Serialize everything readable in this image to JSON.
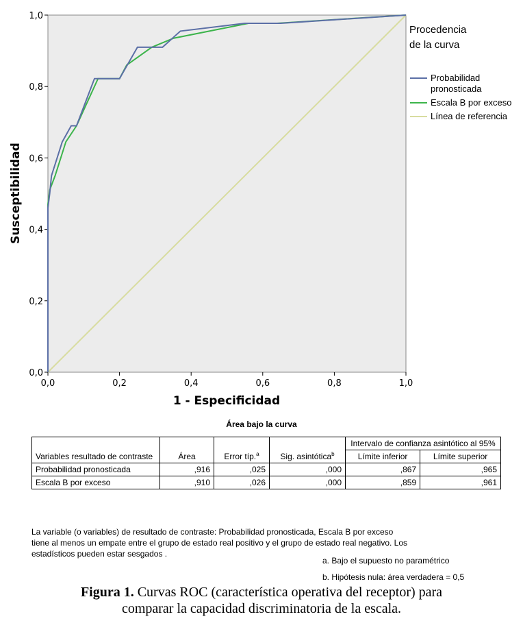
{
  "chart_data": {
    "type": "line",
    "xlabel": "1 - Especificidad",
    "ylabel": "Susceptibilidad",
    "xlim": [
      0,
      1
    ],
    "ylim": [
      0,
      1
    ],
    "xticks": [
      "0,0",
      "0,2",
      "0,4",
      "0,6",
      "0,8",
      "1,0"
    ],
    "yticks": [
      "0,0",
      "0,2",
      "0,4",
      "0,6",
      "0,8",
      "1,0"
    ],
    "legend_title": [
      "Procedencia",
      "de la curva"
    ],
    "legend_position": "right",
    "series": [
      {
        "name": "Probabilidad pronosticada",
        "legend_lines": [
          "Probabilidad",
          "pronosticada"
        ],
        "color": "#5b6fa6",
        "x": [
          0,
          0,
          0.005,
          0.01,
          0.04,
          0.065,
          0.08,
          0.13,
          0.2,
          0.25,
          0.32,
          0.37,
          0.55,
          0.65,
          1.0
        ],
        "y": [
          0,
          0.46,
          0.5,
          0.55,
          0.645,
          0.69,
          0.69,
          0.822,
          0.822,
          0.91,
          0.91,
          0.955,
          0.977,
          0.977,
          1.0
        ]
      },
      {
        "name": "Escala B por exceso",
        "legend_lines": [
          "Escala B por exceso"
        ],
        "color": "#3cb44b",
        "x": [
          0,
          0,
          0.005,
          0.02,
          0.05,
          0.08,
          0.14,
          0.2,
          0.22,
          0.29,
          0.35,
          0.56,
          0.64,
          1.0
        ],
        "y": [
          0,
          0.47,
          0.51,
          0.55,
          0.645,
          0.69,
          0.822,
          0.822,
          0.86,
          0.91,
          0.935,
          0.977,
          0.977,
          1.0
        ]
      },
      {
        "name": "Línea de referencia",
        "legend_lines": [
          "Línea de referencia"
        ],
        "color": "#d8dca0",
        "x": [
          0,
          1
        ],
        "y": [
          0,
          1
        ]
      }
    ],
    "background": "#ececec"
  },
  "table": {
    "title": "Área bajo la curva",
    "col_variable": "Variables resultado de contraste",
    "col_area": "Área",
    "col_error": "Error típ.",
    "col_error_sup": "a",
    "col_sig": "Sig. asintótica",
    "col_sig_sup": "b",
    "col_ci": "Intervalo de confianza asintótico al 95%",
    "col_lower": "Límite inferior",
    "col_upper": "Límite superior",
    "rows": [
      {
        "variable": "Probabilidad pronosticada",
        "area": ",916",
        "error": ",025",
        "sig": ",000",
        "lower": ",867",
        "upper": ",965"
      },
      {
        "variable": "Escala B por exceso",
        "area": ",910",
        "error": ",026",
        "sig": ",000",
        "lower": ",859",
        "upper": ",961"
      }
    ]
  },
  "notes": {
    "tie": [
      "La variable (o variables) de resultado de contraste: Probabilidad pronosticada, Escala B por exceso",
      "tiene al menos un empate entre el grupo de estado real positivo y el grupo de estado real negativo. Los",
      "estadísticos pueden estar sesgados ."
    ],
    "a": "a. Bajo el supuesto no paramétrico",
    "b": "b. Hipótesis nula: área verdadera = 0,5"
  },
  "caption": {
    "label": "Figura 1.",
    "line1": " Curvas ROC (característica operativa del receptor) para",
    "line2": "comparar la capacidad discriminatoria de la escala."
  }
}
